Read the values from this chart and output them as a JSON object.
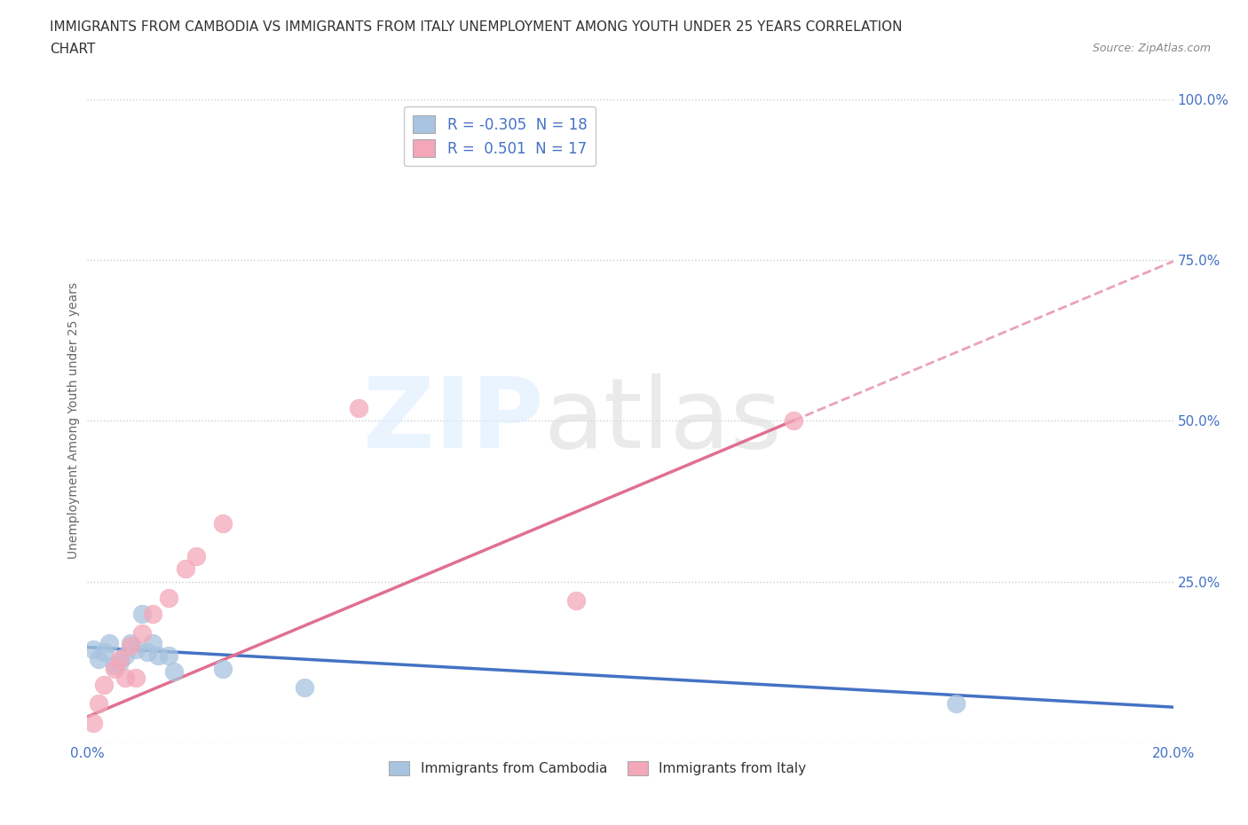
{
  "title_line1": "IMMIGRANTS FROM CAMBODIA VS IMMIGRANTS FROM ITALY UNEMPLOYMENT AMONG YOUTH UNDER 25 YEARS CORRELATION",
  "title_line2": "CHART",
  "source_text": "Source: ZipAtlas.com",
  "ylabel": "Unemployment Among Youth under 25 years",
  "xlim": [
    0.0,
    0.2
  ],
  "ylim": [
    0.0,
    1.0
  ],
  "xticks": [
    0.0,
    0.05,
    0.1,
    0.15,
    0.2
  ],
  "yticks": [
    0.0,
    0.25,
    0.5,
    0.75,
    1.0
  ],
  "grid_color": "#cccccc",
  "cambodia_color": "#a8c4e0",
  "italy_color": "#f4a7b9",
  "cambodia_line_color": "#4472c4",
  "italy_line_color": "#e07090",
  "cambodia_R": -0.305,
  "cambodia_N": 18,
  "italy_R": 0.501,
  "italy_N": 17,
  "cambodia_x": [
    0.001,
    0.002,
    0.003,
    0.004,
    0.005,
    0.006,
    0.007,
    0.008,
    0.009,
    0.01,
    0.011,
    0.012,
    0.013,
    0.015,
    0.016,
    0.025,
    0.04,
    0.16
  ],
  "cambodia_y": [
    0.145,
    0.13,
    0.14,
    0.155,
    0.12,
    0.125,
    0.135,
    0.155,
    0.145,
    0.2,
    0.14,
    0.155,
    0.135,
    0.135,
    0.11,
    0.115,
    0.085,
    0.06
  ],
  "italy_x": [
    0.001,
    0.002,
    0.003,
    0.005,
    0.006,
    0.007,
    0.008,
    0.009,
    0.01,
    0.012,
    0.015,
    0.018,
    0.02,
    0.025,
    0.05,
    0.09,
    0.13
  ],
  "italy_y": [
    0.03,
    0.06,
    0.09,
    0.115,
    0.13,
    0.1,
    0.15,
    0.1,
    0.17,
    0.2,
    0.225,
    0.27,
    0.29,
    0.34,
    0.52,
    0.22,
    0.5
  ],
  "background_color": "#ffffff",
  "title_color": "#333333",
  "title_fontsize": 11,
  "axis_label_color": "#666666",
  "tick_color": "#4472c4",
  "right_tick_color": "#4472c4"
}
